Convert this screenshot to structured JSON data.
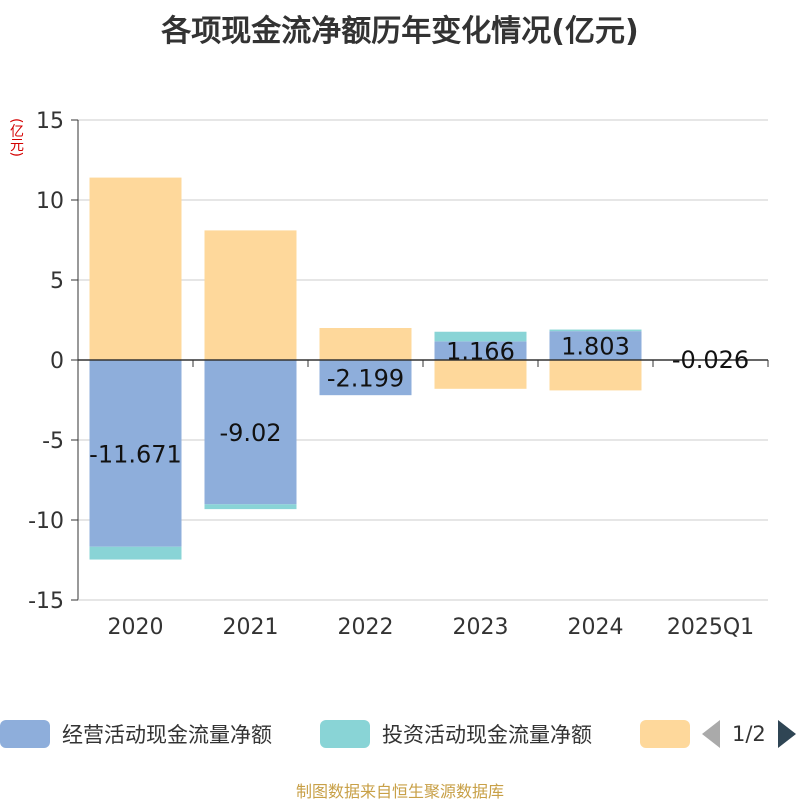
{
  "chart_data": {
    "type": "bar",
    "stacked": true,
    "title": "各项现金流净额历年变化情况(亿元)",
    "unit_label": "(亿元)",
    "categories": [
      "2020",
      "2021",
      "2022",
      "2023",
      "2024",
      "2025Q1"
    ],
    "ylim": [
      -15,
      15
    ],
    "yticks": [
      15,
      10,
      5,
      0,
      -5,
      -10,
      -15
    ],
    "grid": true,
    "legend_position": "bottom",
    "series": [
      {
        "name": "经营活动现金流量净额",
        "color": "#8eaedb",
        "values": [
          -11.671,
          -9.02,
          -2.199,
          1.166,
          1.803,
          -0.026
        ]
      },
      {
        "name": "投资活动现金流量净额",
        "color": "#89d4d6",
        "values": [
          -0.8,
          -0.3,
          0,
          0.6,
          0.1,
          0
        ]
      },
      {
        "name": "",
        "color": "#fed89b",
        "values": [
          11.4,
          8.1,
          2.0,
          -1.8,
          -1.9,
          0
        ]
      }
    ],
    "data_labels": [
      "-11.671",
      "-9.02",
      "-2.199",
      "1.166",
      "1.803",
      "-0.026"
    ]
  },
  "legend": {
    "items": [
      {
        "label": "经营活动现金流量净额",
        "color": "#8eaedb"
      },
      {
        "label": "投资活动现金流量净额",
        "color": "#89d4d6"
      },
      {
        "label": "",
        "color": "#fed89b"
      }
    ],
    "pager": "1/2"
  },
  "source": "制图数据来自恒生聚源数据库"
}
